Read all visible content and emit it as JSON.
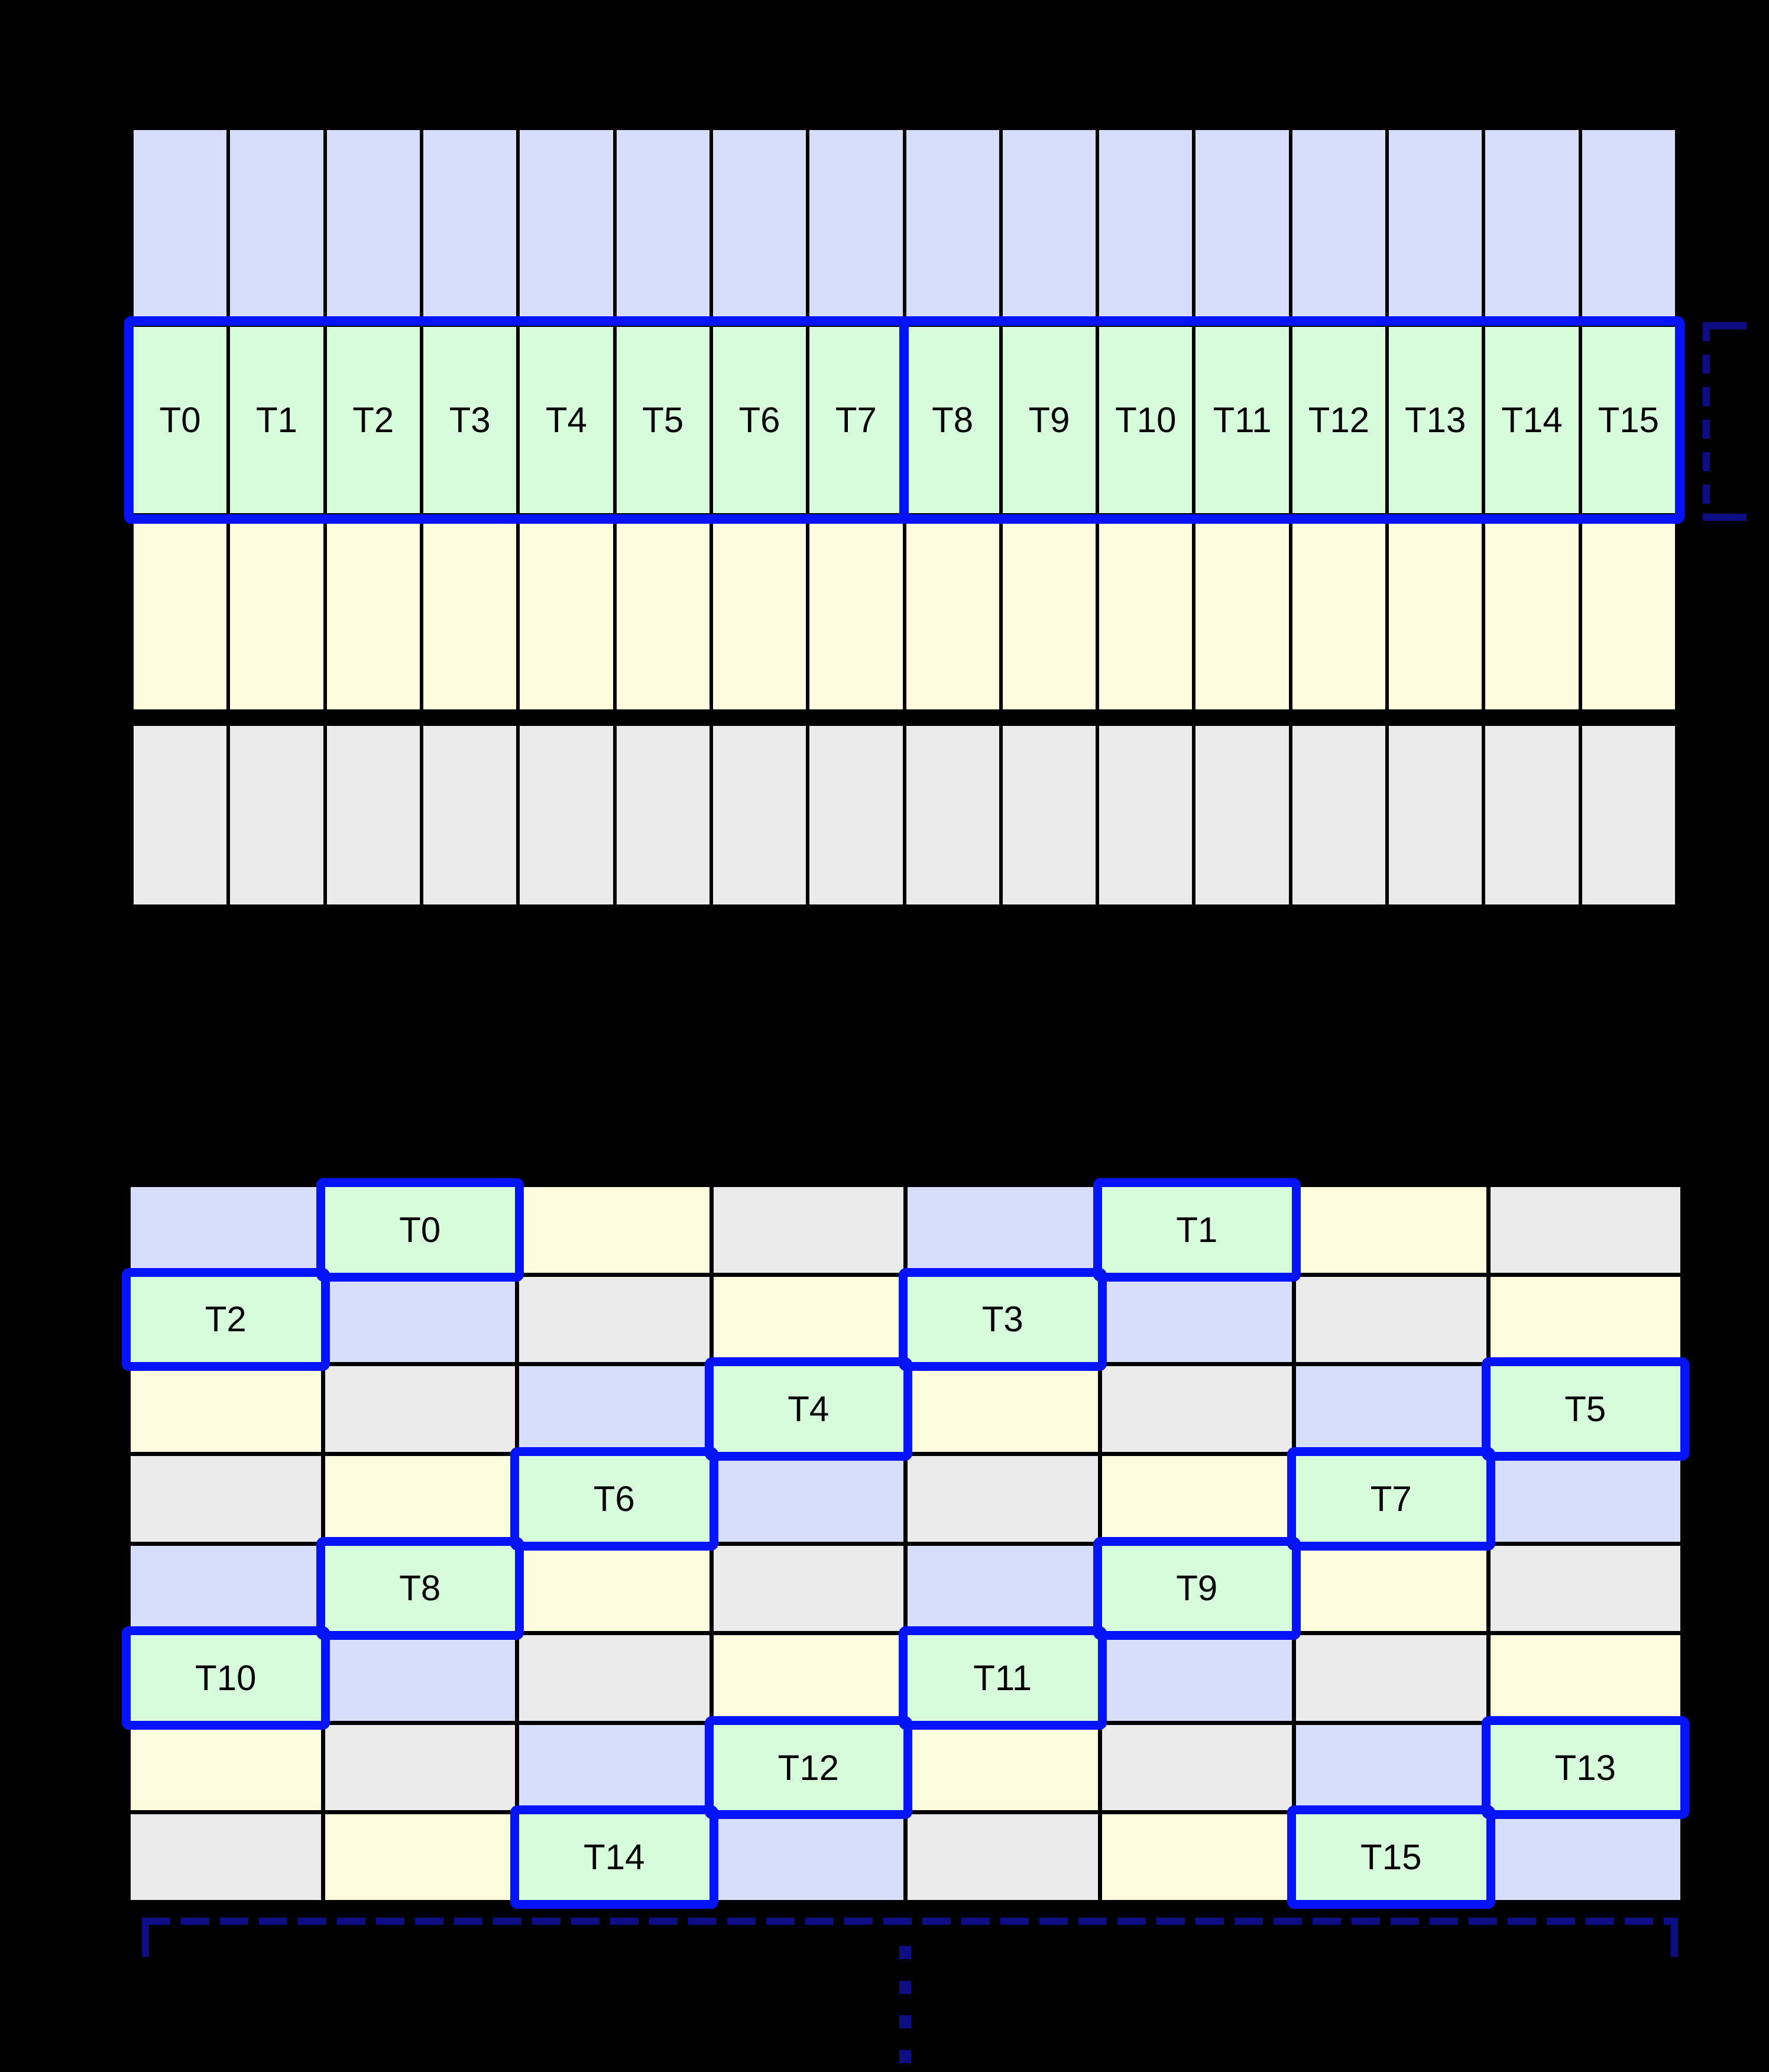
{
  "colors": {
    "background": "#000000",
    "lavender": "#d7defc",
    "mint": "#d6fcdb",
    "cream": "#fdfcdf",
    "gray": "#ebebeb",
    "highlight_blue": "#0414fa",
    "navy": "#0d0d85",
    "text": "#000000"
  },
  "top_grid": {
    "columns": 16,
    "row_colors": [
      "lavender",
      "mint",
      "cream",
      "gray"
    ],
    "thread_row_index": 1,
    "threads": [
      "T0",
      "T1",
      "T2",
      "T3",
      "T4",
      "T5",
      "T6",
      "T7",
      "T8",
      "T9",
      "T10",
      "T11",
      "T12",
      "T13",
      "T14",
      "T15"
    ],
    "highlight_groups": [
      {
        "from": 0,
        "to": 7
      },
      {
        "from": 8,
        "to": 15
      }
    ]
  },
  "bottom_grid": {
    "columns": 8,
    "rows": 8,
    "palette_order": [
      "lavender",
      "mint",
      "cream",
      "gray"
    ],
    "threads": [
      {
        "label": "T0",
        "row": 0,
        "col": 1
      },
      {
        "label": "T1",
        "row": 0,
        "col": 5
      },
      {
        "label": "T2",
        "row": 1,
        "col": 0
      },
      {
        "label": "T3",
        "row": 1,
        "col": 4
      },
      {
        "label": "T4",
        "row": 2,
        "col": 3
      },
      {
        "label": "T5",
        "row": 2,
        "col": 7
      },
      {
        "label": "T6",
        "row": 3,
        "col": 2
      },
      {
        "label": "T7",
        "row": 3,
        "col": 6
      },
      {
        "label": "T8",
        "row": 4,
        "col": 1
      },
      {
        "label": "T9",
        "row": 4,
        "col": 5
      },
      {
        "label": "T10",
        "row": 5,
        "col": 0
      },
      {
        "label": "T11",
        "row": 5,
        "col": 4
      },
      {
        "label": "T12",
        "row": 6,
        "col": 3
      },
      {
        "label": "T13",
        "row": 6,
        "col": 7
      },
      {
        "label": "T14",
        "row": 7,
        "col": 2
      },
      {
        "label": "T15",
        "row": 7,
        "col": 6
      }
    ]
  },
  "annotations": {
    "right_bracket_present": true,
    "bottom_bracket_present": true,
    "continuation_dots": 4
  }
}
